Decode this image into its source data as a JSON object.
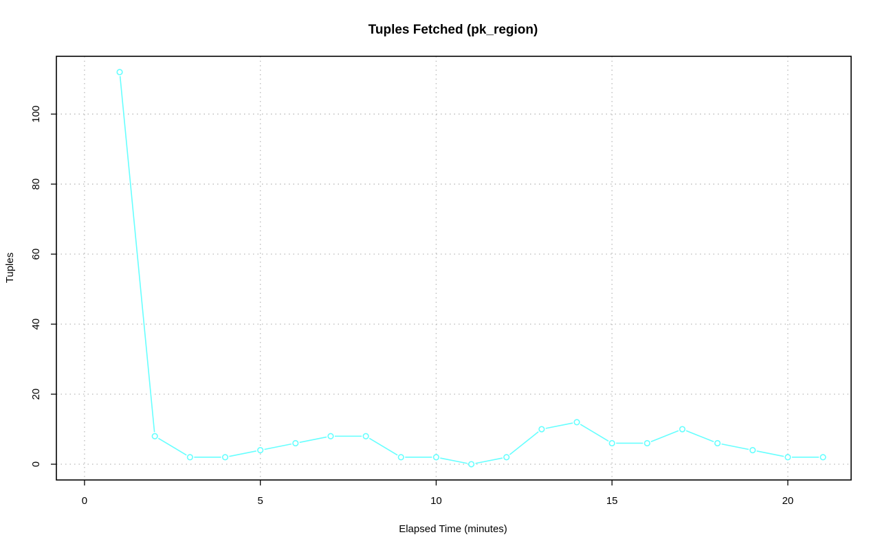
{
  "chart_data": {
    "type": "line",
    "title": "Tuples Fetched (pk_region)",
    "xlabel": "Elapsed Time (minutes)",
    "ylabel": "Tuples",
    "xlim": [
      -0.8,
      21.8
    ],
    "ylim": [
      -4.5,
      116.5
    ],
    "xticks": [
      0,
      5,
      10,
      15,
      20
    ],
    "yticks": [
      0,
      20,
      40,
      60,
      80,
      100
    ],
    "grid": true,
    "series": [
      {
        "color": "#66ffff",
        "x": [
          1,
          2,
          3,
          4,
          5,
          6,
          7,
          8,
          9,
          10,
          11,
          12,
          13,
          14,
          15,
          16,
          17,
          18,
          19,
          20,
          21
        ],
        "y": [
          112,
          8,
          2,
          2,
          4,
          6,
          8,
          8,
          2,
          2,
          0,
          2,
          10,
          12,
          6,
          6,
          10,
          6,
          4,
          2,
          2
        ]
      }
    ]
  }
}
